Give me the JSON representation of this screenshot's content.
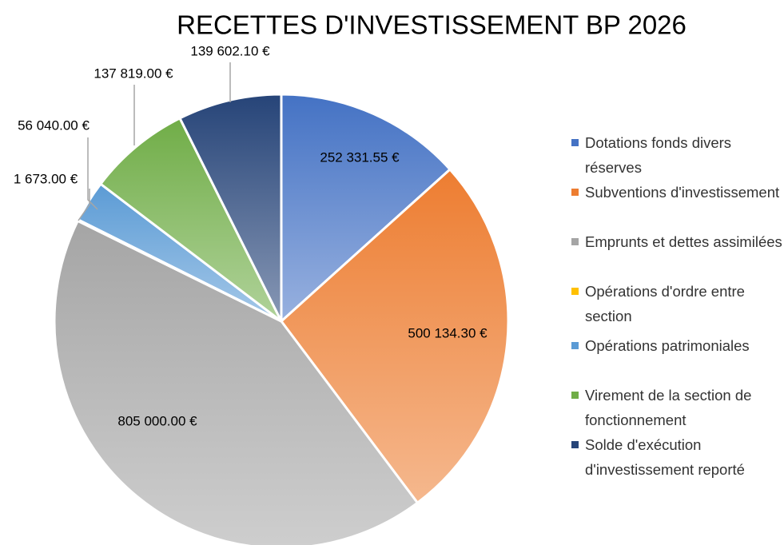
{
  "chart_data": {
    "type": "pie",
    "title": "RECETTES D'INVESTISSEMENT BP 2026",
    "categories": [
      "Dotations fonds divers réserves",
      "Subventions d'investissement",
      "Emprunts et dettes assimilées",
      "Opérations d'ordre entre section",
      "Opérations patrimoniales",
      "Virement de la section de fonctionnement",
      "Solde d'exécution d'investissement reporté"
    ],
    "values": [
      252331.55,
      500134.3,
      805000.0,
      1673.0,
      56040.0,
      137819.0,
      139602.1
    ],
    "value_labels": [
      "252 331.55 €",
      "500 134.30 €",
      "805 000.00 €",
      "1 673.00 €",
      "56 040.00 €",
      "137 819.00 €",
      "139 602.10 €"
    ],
    "colors": [
      "#4472c4",
      "#ed7d31",
      "#a5a5a5",
      "#ffc000",
      "#5b9bd5",
      "#70ad47",
      "#264478"
    ],
    "legend": "right"
  }
}
